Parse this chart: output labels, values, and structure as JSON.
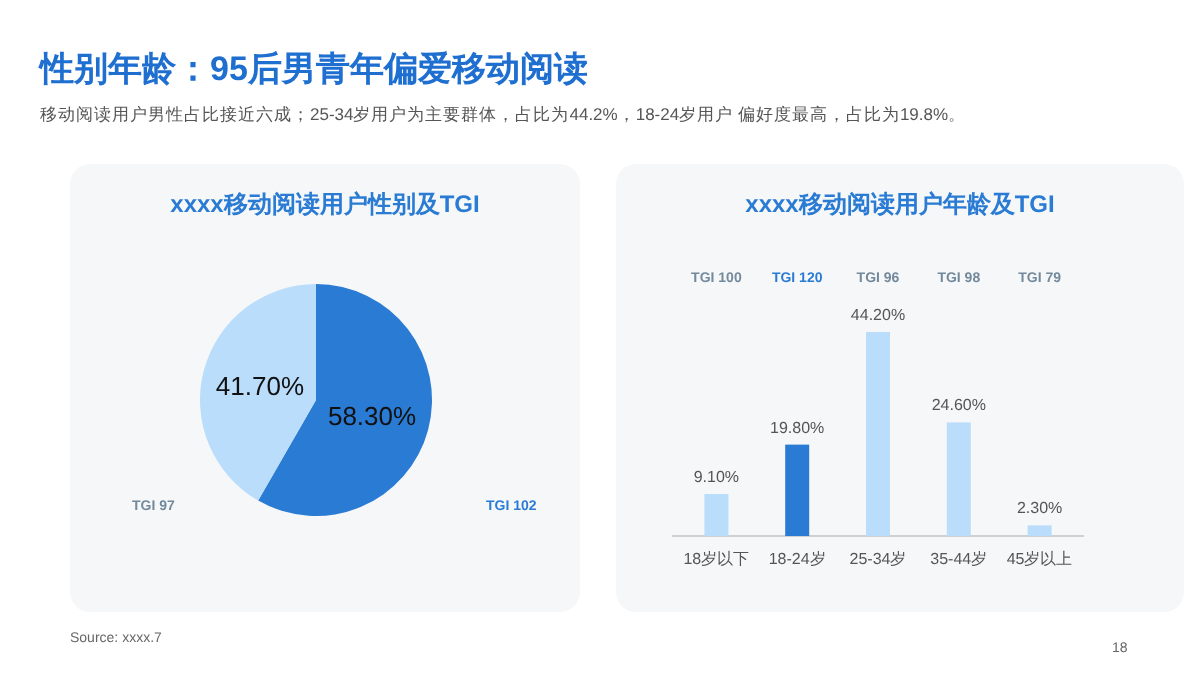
{
  "chart_data": [
    {
      "type": "pie",
      "title": "xxxx移动阅读用户性别及TGI",
      "categories": [
        "TGI 102",
        "TGI 97"
      ],
      "values": [
        58.3,
        41.7
      ],
      "colors": [
        "#2a7bd3",
        "#b9ddfb"
      ],
      "value_labels": [
        "58.30%",
        "41.70%"
      ],
      "annotations": [
        "性别年龄：95后男青年偏爱移动阅读",
        "移动阅读用户男性占比接近六成；25-34岁用户为主要群体，占比为44.2%，18-24岁用户 偏好度最高，占比为19.8%。",
        "Source: xxxx.7",
        "18"
      ]
    },
    {
      "type": "bar",
      "title": "xxxx移动阅读用户年龄及TGI",
      "categories": [
        "18岁以下",
        "18-24岁",
        "25-34岁",
        "35-44岁",
        "45岁以上"
      ],
      "values": [
        9.1,
        19.8,
        44.2,
        24.6,
        2.3
      ],
      "relative": false,
      "colors": [
        "#b9ddfb",
        "#2a7bd3",
        "#b9ddfb",
        "#b9ddfb",
        "#b9ddfb"
      ],
      "value_labels": [
        "9.10%",
        "19.80%",
        "44.20%",
        "24.60%",
        "2.30%"
      ],
      "annotations": [
        "TGI 100",
        "TGI 120",
        "TGI 96",
        "TGI 98",
        "TGI 79"
      ]
    }
  ]
}
